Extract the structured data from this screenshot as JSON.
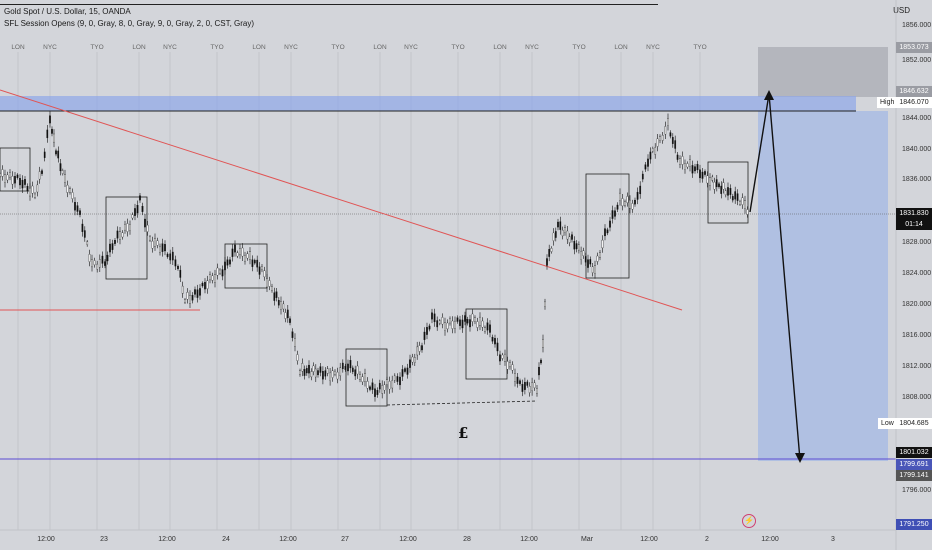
{
  "header": {
    "title": "Gold Spot / U.S. Dollar, 15, OANDA",
    "indicator": "SFL Session Opens (9, 0, Gray, 8, 0, Gray, 9, 0, Gray, 2, 0, CST, Gray)"
  },
  "axis": {
    "currency": "USD",
    "ticks": [
      "1856.000",
      "1852.000",
      "1844.000",
      "1840.000",
      "1836.000",
      "1828.000",
      "1824.000",
      "1820.000",
      "1816.000",
      "1812.000",
      "1808.000",
      "1796.000"
    ]
  },
  "xaxis": [
    "12:00",
    "23",
    "12:00",
    "24",
    "12:00",
    "27",
    "12:00",
    "28",
    "12:00",
    "Mar",
    "12:00",
    "2",
    "12:00",
    "3"
  ],
  "sessions": [
    "LON",
    "NYC",
    "TYO",
    "LON",
    "NYC",
    "TYO",
    "LON",
    "NYC",
    "TYO",
    "LON",
    "NYC",
    "TYO",
    "LON",
    "NYC",
    "TYO",
    "LON",
    "NYC",
    "TYO"
  ],
  "price_badges": {
    "target_top": "1853.073",
    "high_marker": "1846.632",
    "high_value": "1846.070",
    "current": "1831.830",
    "countdown": "01:14",
    "low_value": "1804.685",
    "purple_line": "1801.032",
    "entry_a": "1799.691",
    "entry_b": "1799.141",
    "bottom": "1791.250"
  },
  "tags": {
    "high": "High",
    "low": "Low"
  },
  "annotation": {
    "symbol": "£"
  },
  "colors": {
    "background": "#d3d5da",
    "resistance_band": "#8fa6e8",
    "trendline": "#e05555",
    "target_zone": "#a4b8e4",
    "stop_zone": "#b4b6bd",
    "purple_line": "#5b4bd4",
    "candles": "#111111"
  }
}
